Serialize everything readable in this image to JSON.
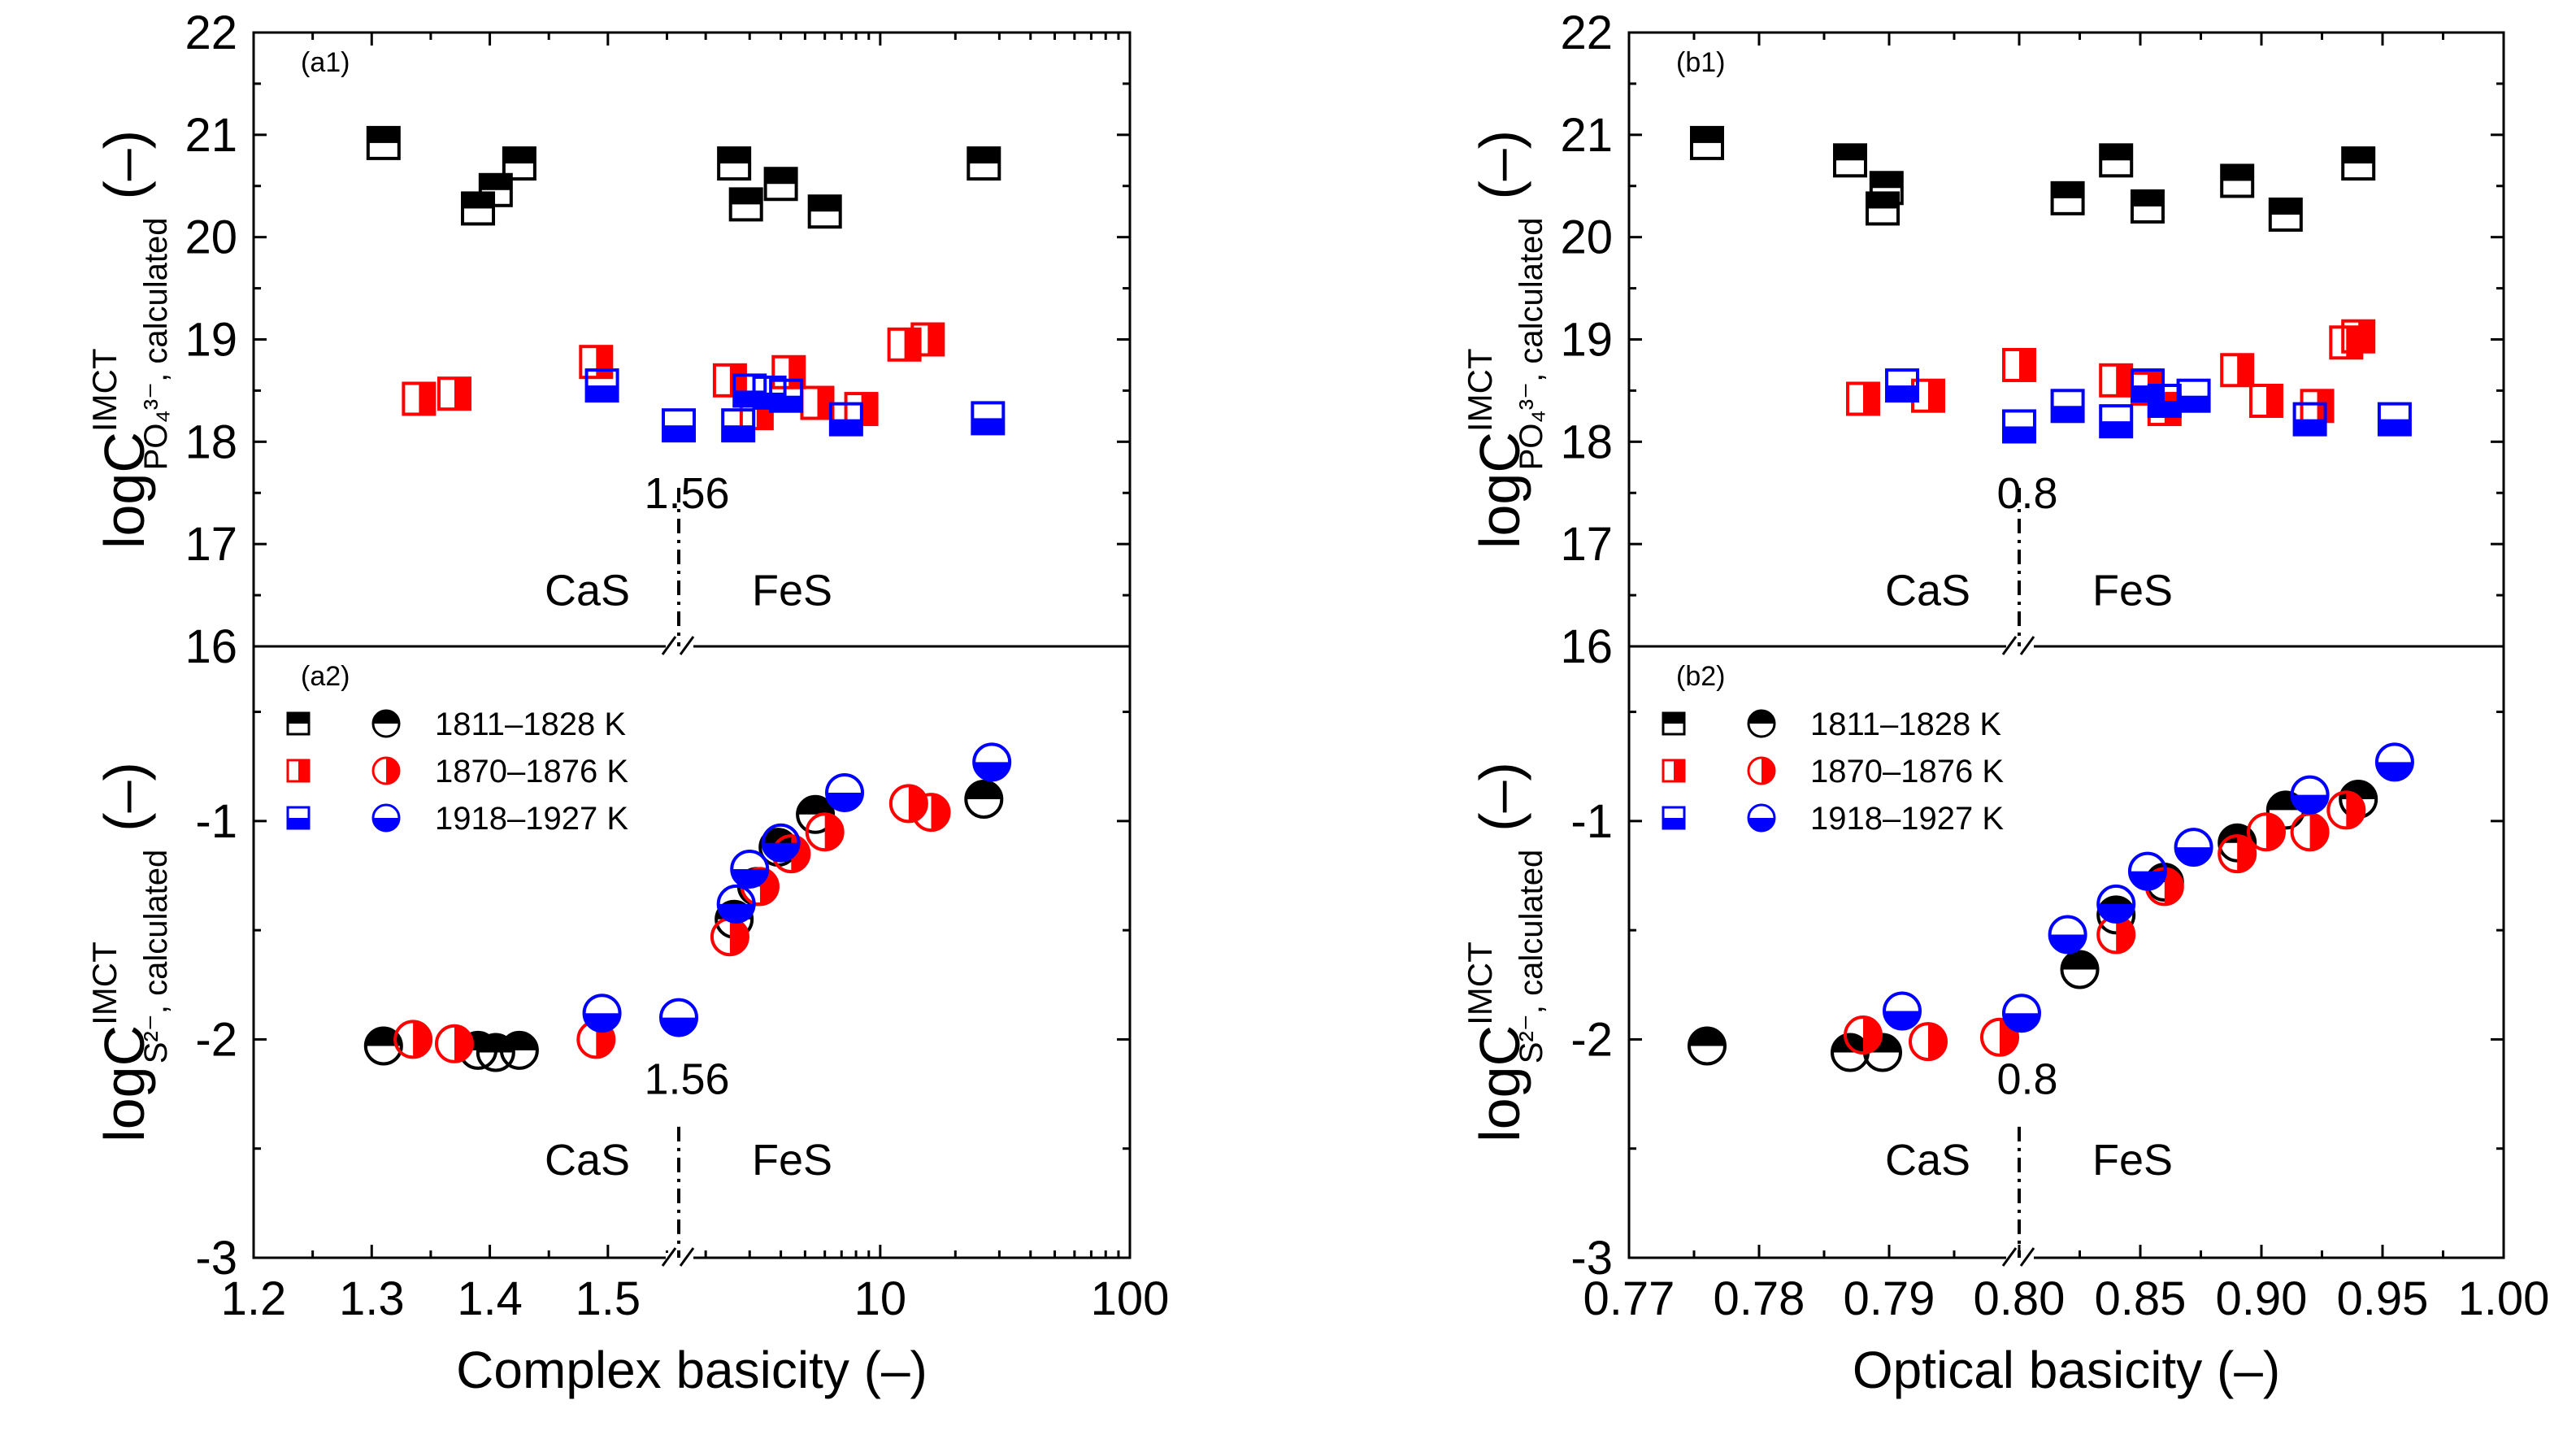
{
  "chart_data": {
    "type": "scatter",
    "legend": {
      "location": "top-left of lower panels",
      "entries": [
        {
          "label": "1811–1828 K",
          "color": "#000000"
        },
        {
          "label": "1870–1876 K",
          "color": "#ff0000"
        },
        {
          "label": "1918–1927 K",
          "color": "#0000ff"
        }
      ]
    },
    "colors": {
      "black": "#000000",
      "red": "#ff0000",
      "blue": "#0000ff"
    },
    "panels": [
      {
        "id": "a1",
        "label": "(a1)",
        "marker": "square",
        "y_label": {
          "main": "logC",
          "sup": "IMCT",
          "sub": "PO₄³⁻",
          "tail": ", calculated",
          "unit": "(–)"
        },
        "ylim": [
          16,
          22
        ],
        "yticks": [
          16,
          17,
          18,
          19,
          20,
          21,
          22
        ],
        "divider_label": "1.56",
        "phase_left": "CaS",
        "phase_right": "FeS",
        "series": [
          {
            "group": 0,
            "x": [
              1.31,
              1.39,
              1.405,
              1.425,
              2.6,
              2.9,
              4.0,
              6.0,
              26
            ],
            "y": [
              20.92,
              20.28,
              20.46,
              20.72,
              20.72,
              20.32,
              20.52,
              20.25,
              20.72
            ]
          },
          {
            "group": 1,
            "x": [
              1.34,
              1.37,
              1.49,
              2.5,
              3.2,
              4.3,
              5.6,
              8.4,
              12.5,
              15.5
            ],
            "y": [
              18.42,
              18.47,
              18.78,
              18.6,
              18.28,
              18.68,
              18.38,
              18.32,
              18.95,
              19.0
            ]
          },
          {
            "group": 2,
            "x": [
              1.495,
              1.56,
              2.7,
              3.0,
              3.6,
              4.2,
              7.3,
              27
            ],
            "y": [
              18.55,
              18.16,
              18.16,
              18.5,
              18.48,
              18.45,
              18.22,
              18.23
            ]
          }
        ]
      },
      {
        "id": "a2",
        "label": "(a2)",
        "marker": "circle",
        "y_label": {
          "main": "logC",
          "sup": "IMCT",
          "sub": "S²⁻",
          "tail": ", calculated",
          "unit": "(–)"
        },
        "ylim": [
          -3,
          -0.2
        ],
        "yticks": [
          -3,
          -2,
          -1
        ],
        "divider_label": "1.56",
        "phase_left": "CaS",
        "phase_right": "FeS",
        "series": [
          {
            "group": 0,
            "x": [
              1.31,
              1.39,
              1.405,
              1.425,
              2.6,
              3.2,
              3.9,
              5.5,
              26
            ],
            "y": [
              -2.03,
              -2.05,
              -2.06,
              -2.05,
              -1.45,
              -1.3,
              -1.12,
              -0.97,
              -0.9
            ]
          },
          {
            "group": 1,
            "x": [
              1.335,
              1.37,
              1.49,
              2.5,
              3.3,
              4.4,
              6.0,
              13.0,
              16
            ],
            "y": [
              -2.0,
              -2.02,
              -2.0,
              -1.53,
              -1.3,
              -1.15,
              -1.05,
              -0.92,
              -0.96
            ]
          },
          {
            "group": 2,
            "x": [
              1.495,
              1.56,
              2.65,
              3.0,
              4.0,
              7.2,
              28
            ],
            "y": [
              -1.88,
              -1.9,
              -1.38,
              -1.22,
              -1.1,
              -0.87,
              -0.73
            ]
          }
        ]
      },
      {
        "id": "b1",
        "label": "(b1)",
        "marker": "square",
        "y_label": {
          "main": "logC",
          "sup": "IMCT",
          "sub": "PO₄³⁻",
          "tail": ", calculated",
          "unit": "(–)"
        },
        "ylim": [
          16,
          22
        ],
        "yticks": [
          16,
          17,
          18,
          19,
          20,
          21,
          22
        ],
        "divider_label": "0.8",
        "phase_left": "CaS",
        "phase_right": "FeS",
        "series": [
          {
            "group": 0,
            "x": [
              0.776,
              0.787,
              0.7895,
              0.7898,
              0.82,
              0.84,
              0.853,
              0.89,
              0.91,
              0.94
            ],
            "y": [
              20.92,
              20.75,
              20.28,
              20.48,
              20.38,
              20.75,
              20.3,
              20.55,
              20.22,
              20.72
            ]
          },
          {
            "group": 1,
            "x": [
              0.788,
              0.793,
              0.8,
              0.84,
              0.853,
              0.86,
              0.89,
              0.902,
              0.923,
              0.935,
              0.94
            ],
            "y": [
              18.42,
              18.45,
              18.75,
              18.6,
              18.52,
              18.32,
              18.7,
              18.4,
              18.35,
              18.97,
              19.03
            ]
          },
          {
            "group": 2,
            "x": [
              0.791,
              0.8,
              0.82,
              0.84,
              0.853,
              0.86,
              0.872,
              0.92,
              0.955
            ],
            "y": [
              18.55,
              18.15,
              18.35,
              18.2,
              18.55,
              18.4,
              18.45,
              18.22,
              18.22
            ]
          }
        ]
      },
      {
        "id": "b2",
        "label": "(b2)",
        "marker": "circle",
        "y_label": {
          "main": "logC",
          "sup": "IMCT",
          "sub": "S²⁻",
          "tail": ", calculated",
          "unit": "(–)"
        },
        "ylim": [
          -3,
          -0.2
        ],
        "yticks": [
          -3,
          -2,
          -1
        ],
        "divider_label": "0.8",
        "phase_left": "CaS",
        "phase_right": "FeS",
        "series": [
          {
            "group": 0,
            "x": [
              0.776,
              0.787,
              0.7895,
              0.825,
              0.84,
              0.86,
              0.89,
              0.91,
              0.94
            ],
            "y": [
              -2.03,
              -2.06,
              -2.06,
              -1.68,
              -1.43,
              -1.28,
              -1.1,
              -0.95,
              -0.9
            ]
          },
          {
            "group": 1,
            "x": [
              0.788,
              0.793,
              0.7985,
              0.84,
              0.86,
              0.89,
              0.902,
              0.92,
              0.935
            ],
            "y": [
              -1.98,
              -2.01,
              -1.99,
              -1.52,
              -1.3,
              -1.15,
              -1.05,
              -1.05,
              -0.95
            ]
          },
          {
            "group": 2,
            "x": [
              0.791,
              0.801,
              0.82,
              0.84,
              0.853,
              0.872,
              0.92,
              0.955
            ],
            "y": [
              -1.87,
              -1.88,
              -1.52,
              -1.38,
              -1.23,
              -1.12,
              -0.88,
              -0.73
            ]
          }
        ]
      }
    ],
    "x_axes": [
      {
        "title": "Complex basicity (–)",
        "break": true,
        "left": {
          "scale": "linear",
          "range": [
            1.2,
            1.56
          ],
          "ticks": [
            1.2,
            1.3,
            1.4,
            1.5
          ],
          "tick_labels": [
            "1.2",
            "1.3",
            "1.4",
            "1.5"
          ]
        },
        "right": {
          "scale": "log",
          "range": [
            1.56,
            100
          ],
          "ticks": [
            10,
            100
          ],
          "tick_labels": [
            "10",
            "100"
          ]
        }
      },
      {
        "title": "Optical basicity (–)",
        "break": true,
        "left": {
          "scale": "linear",
          "range": [
            0.77,
            0.8
          ],
          "ticks": [
            0.77,
            0.78,
            0.79,
            0.8
          ],
          "tick_labels": [
            "0.77",
            "0.78",
            "0.79",
            "0.80"
          ]
        },
        "right": {
          "scale": "linear",
          "range": [
            0.8,
            1.0
          ],
          "ticks": [
            0.85,
            0.9,
            0.95,
            1.0
          ],
          "tick_labels": [
            "0.85",
            "0.90",
            "0.95",
            "1.00"
          ]
        }
      }
    ]
  }
}
